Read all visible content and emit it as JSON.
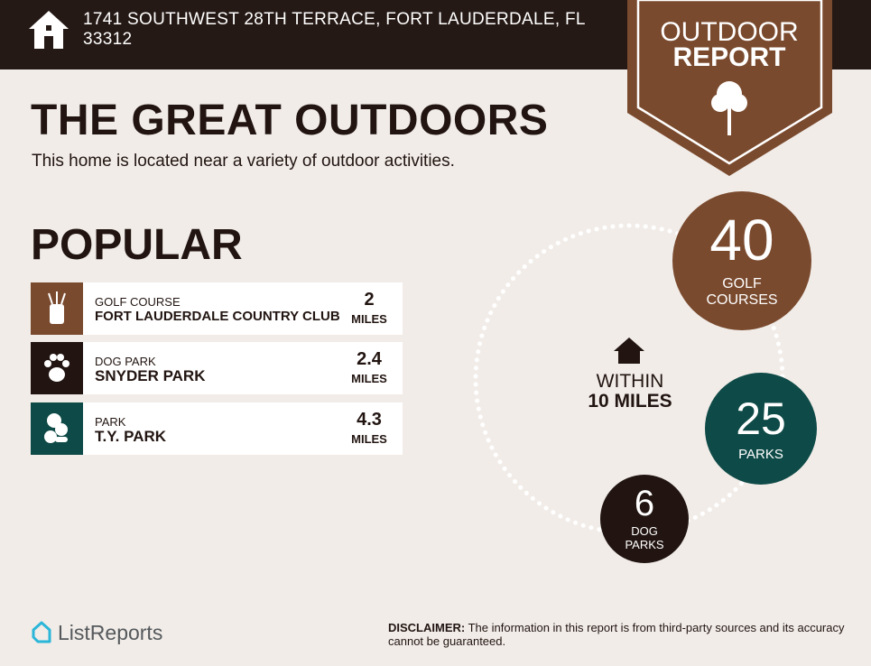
{
  "header": {
    "address": "1741 SOUTHWEST 28TH TERRACE, FORT LAUDERDALE, FL 33312",
    "badge": [
      "OUTDOOR",
      "REPORT"
    ]
  },
  "title": "THE GREAT OUTDOORS",
  "subtitle": "This home is located near a variety of outdoor activities.",
  "section": "POPULAR",
  "items": [
    {
      "category": "GOLF COURSE",
      "name": "FORT LAUDERDALE COUNTRY CLUB",
      "distance": 2,
      "unit": "MILES"
    },
    {
      "category": "DOG PARK",
      "name": "SNYDER PARK",
      "distance": 2.4,
      "unit": "MILES"
    },
    {
      "category": "PARK",
      "name": "T.Y. PARK",
      "distance": 4.3,
      "unit": "MILES"
    }
  ],
  "radius": {
    "label": "WITHIN",
    "distance": "10 MILES"
  },
  "counts": [
    {
      "count": 40,
      "label": "GOLF COURSES"
    },
    {
      "count": 25,
      "label": "PARKS"
    },
    {
      "count": 6,
      "label": "DOG PARKS"
    }
  ],
  "footer": {
    "brand": "ListReports",
    "disclaimer_label": "DISCLAIMER:",
    "disclaimer": "The information in this report is from third-party sources and its accuracy cannot be guaranteed."
  }
}
